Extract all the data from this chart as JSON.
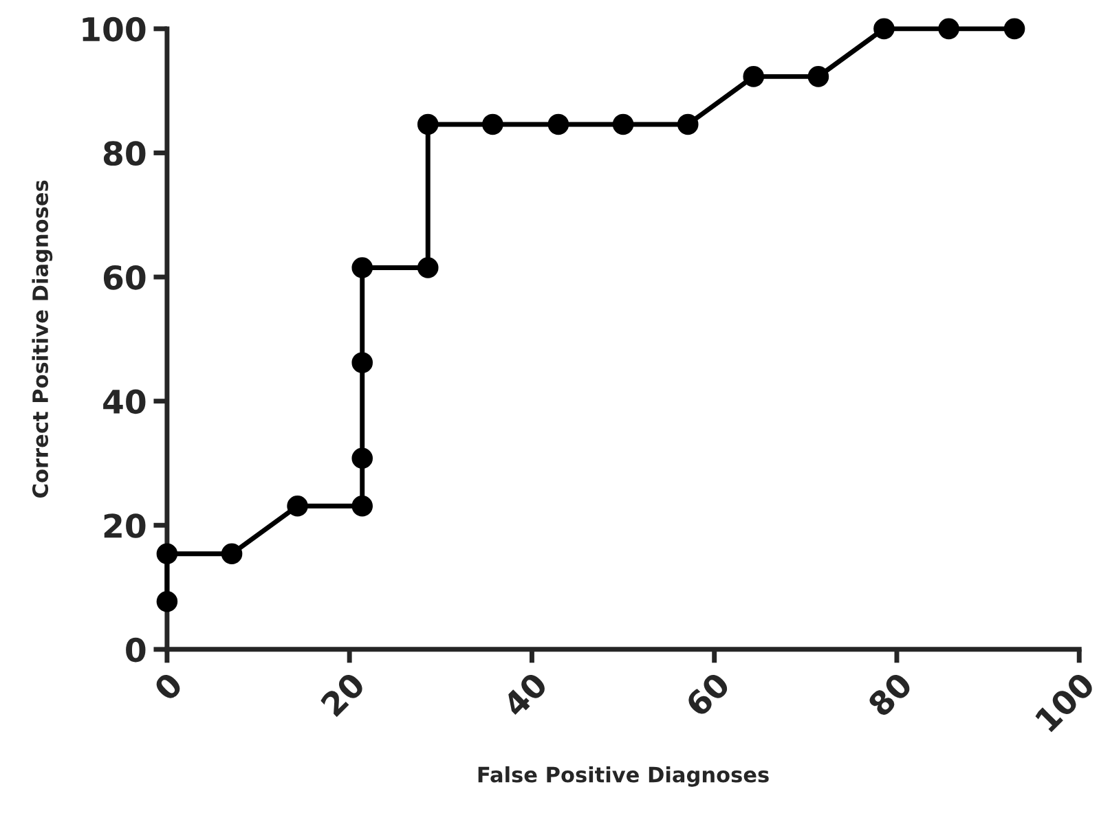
{
  "chart_data": {
    "type": "line",
    "xlabel": "False Positive Diagnoses",
    "ylabel": "Correct Positive Diagnoses",
    "series": [
      {
        "color": "#000000",
        "x": [
          0,
          0,
          7.1,
          14.3,
          21.4,
          21.4,
          21.4,
          21.4,
          28.6,
          28.6,
          35.7,
          42.9,
          50,
          57.1,
          64.3,
          71.4,
          78.6,
          85.7,
          92.9
        ],
        "values": [
          7.7,
          15.4,
          15.4,
          23.1,
          23.1,
          30.8,
          46.2,
          61.5,
          61.5,
          84.6,
          84.6,
          84.6,
          84.6,
          84.6,
          92.3,
          92.3,
          100,
          100,
          100
        ]
      }
    ],
    "xlim": [
      0,
      100
    ],
    "ylim": [
      0,
      100
    ],
    "xticks": [
      0,
      20,
      40,
      60,
      80,
      100
    ],
    "yticks": [
      0,
      20,
      40,
      60,
      80,
      100
    ],
    "marker": "circle",
    "line_style": "solid",
    "grid": false,
    "legend": false
  }
}
